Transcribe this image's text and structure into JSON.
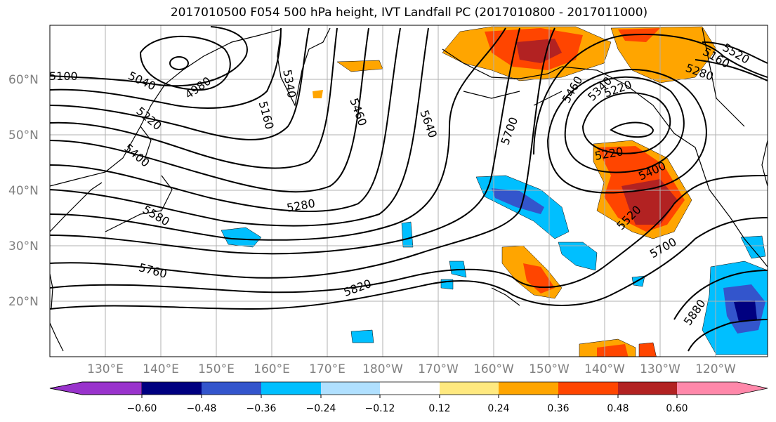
{
  "title": "2017010500 F054 500 hPa height, IVT Landfall PC (2017010800 - 2017011000)",
  "lat_labels": [
    "60°N",
    "50°N",
    "40°N",
    "30°N",
    "20°N"
  ],
  "lon_labels": [
    "130°E",
    "140°E",
    "150°E",
    "160°E",
    "170°E",
    "180°W",
    "170°W",
    "160°W",
    "150°W",
    "140°W",
    "130°W",
    "120°W"
  ],
  "contour_labels": [
    "5100",
    "5040",
    "4980",
    "5340",
    "5160",
    "5460",
    "5640",
    "5220",
    "5400",
    "5580",
    "5280",
    "5760",
    "5820",
    "5700",
    "5460",
    "5340",
    "5220",
    "5160",
    "5520",
    "5280",
    "5220",
    "5400",
    "5520",
    "5700",
    "5880"
  ],
  "colorbar": {
    "ticks": [
      "−0.60",
      "−0.48",
      "−0.36",
      "−0.24",
      "−0.12",
      "0.12",
      "0.24",
      "0.36",
      "0.48",
      "0.60"
    ],
    "colors": [
      "#9933cc",
      "#000080",
      "#3355cc",
      "#00bfff",
      "#b0e0ff",
      "#ffffff",
      "#ffe97f",
      "#ffa500",
      "#ff4500",
      "#b22222",
      "#ff88aa"
    ]
  },
  "colors": {
    "grid": "#b0b0b0",
    "contour": "#000000",
    "coast": "#000000"
  }
}
